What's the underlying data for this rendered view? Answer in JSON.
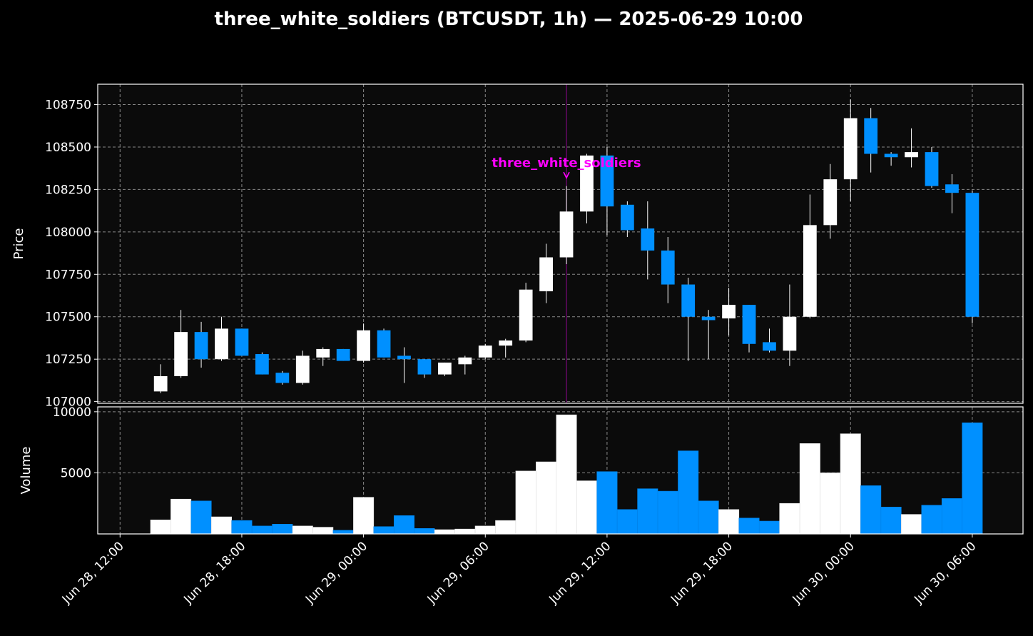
{
  "chart_data": {
    "type": "candlestick",
    "title": "three_white_soldiers (BTCUSDT, 1h) — 2025-06-29 10:00",
    "ylabel": "Price",
    "volume_label": "Volume",
    "ylim": [
      106990,
      108870
    ],
    "volume_ylim": [
      0,
      10400
    ],
    "price_ticks": [
      107000,
      107250,
      107500,
      107750,
      108000,
      108250,
      108500,
      108750
    ],
    "volume_ticks": [
      5000,
      10000
    ],
    "x_ticks": [
      {
        "label": "Jun 28, 12:00",
        "hour": 0
      },
      {
        "label": "Jun 28, 18:00",
        "hour": 6
      },
      {
        "label": "Jun 29, 00:00",
        "hour": 12
      },
      {
        "label": "Jun 29, 06:00",
        "hour": 18
      },
      {
        "label": "Jun 29, 12:00",
        "hour": 24
      },
      {
        "label": "Jun 29, 18:00",
        "hour": 30
      },
      {
        "label": "Jun 30, 00:00",
        "hour": 36
      },
      {
        "label": "Jun 30, 06:00",
        "hour": 42
      }
    ],
    "xlim_hours": [
      -1.1,
      44.5
    ],
    "grid": true,
    "colors": {
      "up": "#ffffff",
      "down": "#0090ff",
      "annotation": "#ff00ff",
      "background": "#0b0b0b",
      "grid": "#888888"
    },
    "annotation": {
      "label": "three_white_soldiers",
      "hour": 22,
      "price": 108310
    },
    "candles": [
      {
        "hour": 2,
        "open": 107060,
        "high": 107220,
        "low": 107050,
        "close": 107150,
        "volume": 1150
      },
      {
        "hour": 3,
        "open": 107150,
        "high": 107540,
        "low": 107140,
        "close": 107410,
        "volume": 2850
      },
      {
        "hour": 4,
        "open": 107410,
        "high": 107470,
        "low": 107200,
        "close": 107250,
        "volume": 2700
      },
      {
        "hour": 5,
        "open": 107250,
        "high": 107500,
        "low": 107240,
        "close": 107430,
        "volume": 1400
      },
      {
        "hour": 6,
        "open": 107430,
        "high": 107430,
        "low": 107270,
        "close": 107270,
        "volume": 1100
      },
      {
        "hour": 7,
        "open": 107280,
        "high": 107290,
        "low": 107160,
        "close": 107160,
        "volume": 650
      },
      {
        "hour": 8,
        "open": 107170,
        "high": 107180,
        "low": 107100,
        "close": 107110,
        "volume": 800
      },
      {
        "hour": 9,
        "open": 107110,
        "high": 107300,
        "low": 107100,
        "close": 107270,
        "volume": 650
      },
      {
        "hour": 10,
        "open": 107260,
        "high": 107320,
        "low": 107210,
        "close": 107310,
        "volume": 550
      },
      {
        "hour": 11,
        "open": 107310,
        "high": 107310,
        "low": 107240,
        "close": 107240,
        "volume": 300
      },
      {
        "hour": 12,
        "open": 107240,
        "high": 107460,
        "low": 107230,
        "close": 107420,
        "volume": 3000
      },
      {
        "hour": 13,
        "open": 107420,
        "high": 107430,
        "low": 107260,
        "close": 107260,
        "volume": 600
      },
      {
        "hour": 14,
        "open": 107270,
        "high": 107320,
        "low": 107110,
        "close": 107250,
        "volume": 1500
      },
      {
        "hour": 15,
        "open": 107250,
        "high": 107250,
        "low": 107140,
        "close": 107160,
        "volume": 450
      },
      {
        "hour": 16,
        "open": 107160,
        "high": 107230,
        "low": 107150,
        "close": 107230,
        "volume": 350
      },
      {
        "hour": 17,
        "open": 107220,
        "high": 107270,
        "low": 107160,
        "close": 107260,
        "volume": 400
      },
      {
        "hour": 18,
        "open": 107260,
        "high": 107340,
        "low": 107250,
        "close": 107330,
        "volume": 650
      },
      {
        "hour": 19,
        "open": 107330,
        "high": 107370,
        "low": 107260,
        "close": 107360,
        "volume": 1100
      },
      {
        "hour": 20,
        "open": 107360,
        "high": 107700,
        "low": 107350,
        "close": 107660,
        "volume": 5150
      },
      {
        "hour": 21,
        "open": 107650,
        "high": 107930,
        "low": 107580,
        "close": 107850,
        "volume": 5900
      },
      {
        "hour": 22,
        "open": 107850,
        "high": 108270,
        "low": 107810,
        "close": 108120,
        "volume": 9750
      },
      {
        "hour": 23,
        "open": 108120,
        "high": 108460,
        "low": 108050,
        "close": 108450,
        "volume": 4350
      },
      {
        "hour": 24,
        "open": 108450,
        "high": 108500,
        "low": 107980,
        "close": 108150,
        "volume": 5100
      },
      {
        "hour": 25,
        "open": 108160,
        "high": 108180,
        "low": 107970,
        "close": 108010,
        "volume": 2000
      },
      {
        "hour": 26,
        "open": 108020,
        "high": 108180,
        "low": 107720,
        "close": 107890,
        "volume": 3700
      },
      {
        "hour": 27,
        "open": 107890,
        "high": 107970,
        "low": 107580,
        "close": 107690,
        "volume": 3500
      },
      {
        "hour": 28,
        "open": 107690,
        "high": 107730,
        "low": 107240,
        "close": 107500,
        "volume": 6800
      },
      {
        "hour": 29,
        "open": 107500,
        "high": 107540,
        "low": 107250,
        "close": 107480,
        "volume": 2700
      },
      {
        "hour": 30,
        "open": 107490,
        "high": 107670,
        "low": 107390,
        "close": 107570,
        "volume": 2000
      },
      {
        "hour": 31,
        "open": 107570,
        "high": 107570,
        "low": 107290,
        "close": 107340,
        "volume": 1300
      },
      {
        "hour": 32,
        "open": 107350,
        "high": 107430,
        "low": 107290,
        "close": 107300,
        "volume": 1050
      },
      {
        "hour": 33,
        "open": 107300,
        "high": 107690,
        "low": 107210,
        "close": 107500,
        "volume": 2500
      },
      {
        "hour": 34,
        "open": 107500,
        "high": 108220,
        "low": 107490,
        "close": 108040,
        "volume": 7400
      },
      {
        "hour": 35,
        "open": 108040,
        "high": 108400,
        "low": 107960,
        "close": 108310,
        "volume": 5000
      },
      {
        "hour": 36,
        "open": 108310,
        "high": 108780,
        "low": 108180,
        "close": 108670,
        "volume": 8200
      },
      {
        "hour": 37,
        "open": 108670,
        "high": 108730,
        "low": 108350,
        "close": 108460,
        "volume": 3950
      },
      {
        "hour": 38,
        "open": 108460,
        "high": 108470,
        "low": 108390,
        "close": 108440,
        "volume": 2200
      },
      {
        "hour": 39,
        "open": 108440,
        "high": 108610,
        "low": 108380,
        "close": 108470,
        "volume": 1600
      },
      {
        "hour": 40,
        "open": 108470,
        "high": 108500,
        "low": 108260,
        "close": 108270,
        "volume": 2350
      },
      {
        "hour": 41,
        "open": 108280,
        "high": 108340,
        "low": 108110,
        "close": 108230,
        "volume": 2900
      },
      {
        "hour": 42,
        "open": 108230,
        "high": 108240,
        "low": 107460,
        "close": 107500,
        "volume": 9100
      }
    ]
  }
}
